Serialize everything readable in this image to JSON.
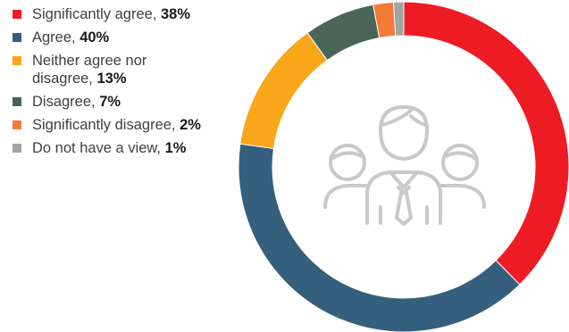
{
  "chart_data": {
    "type": "pie",
    "variant": "donut",
    "categories": [
      "Significantly agree",
      "Agree",
      "Neither agree nor disagree",
      "Disagree",
      "Significantly disagree",
      "Do not have a view"
    ],
    "values": [
      38,
      40,
      13,
      7,
      2,
      1
    ],
    "value_labels": [
      "38%",
      "40%",
      "13%",
      "7%",
      "2%",
      "1%"
    ],
    "colors": [
      "#ed1c24",
      "#35607d",
      "#f9a61a",
      "#486556",
      "#f47a38",
      "#a3a3a3"
    ],
    "legend_position": "left",
    "center_icon": "people-group-icon"
  },
  "legend": {
    "items": [
      {
        "label": "Significantly agree, ",
        "value": "38%"
      },
      {
        "label": "Agree, ",
        "value": "40%"
      },
      {
        "label_line1": "Neither agree nor",
        "label": "disagree, ",
        "value": "13%"
      },
      {
        "label": "Disagree, ",
        "value": "7%"
      },
      {
        "label": "Significantly disagree, ",
        "value": "2%"
      },
      {
        "label": "Do not have a view, ",
        "value": "1%"
      }
    ]
  }
}
